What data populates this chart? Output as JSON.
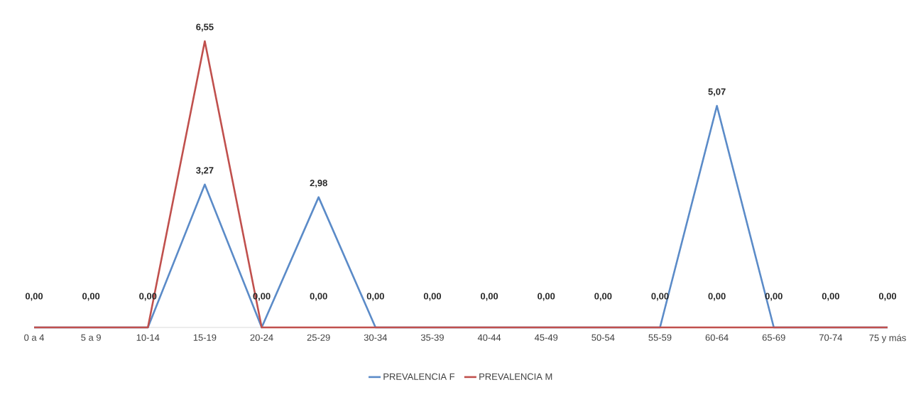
{
  "chart_data": {
    "type": "line",
    "categories": [
      "0 a 4",
      "5 a 9",
      "10-14",
      "15-19",
      "20-24",
      "25-29",
      "30-34",
      "35-39",
      "40-44",
      "45-49",
      "50-54",
      "55-59",
      "60-64",
      "65-69",
      "70-74",
      "75 y más"
    ],
    "series": [
      {
        "name": "PREVALENCIA F",
        "color": "#5b8bc8",
        "values": [
          0,
          0,
          0,
          3.27,
          0,
          2.98,
          0,
          0,
          0,
          0,
          0,
          0,
          5.07,
          0,
          0,
          0
        ],
        "value_labels": [
          null,
          null,
          null,
          "3,27",
          null,
          "2,98",
          null,
          null,
          null,
          null,
          null,
          null,
          "5,07",
          null,
          null,
          null
        ]
      },
      {
        "name": "PREVALENCIA M",
        "color": "#c0504d",
        "values": [
          0,
          0,
          0,
          6.55,
          0,
          0,
          0,
          0,
          0,
          0,
          0,
          0,
          0,
          0,
          0,
          0
        ],
        "value_labels": [
          "0,00",
          "0,00",
          "0,00",
          "6,55",
          "0,00",
          "0,00",
          "0,00",
          "0,00",
          "0,00",
          "0,00",
          "0,00",
          "0,00",
          "0,00",
          "0,00",
          "0,00",
          "0,00"
        ]
      }
    ],
    "legend": "bottom",
    "grid": false,
    "marker": "none",
    "line_style": "solid"
  }
}
